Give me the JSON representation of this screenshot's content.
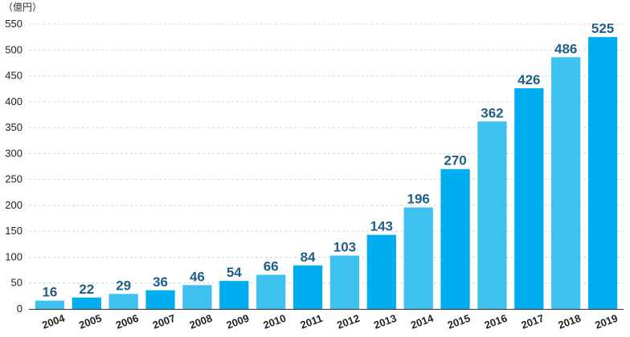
{
  "chart_data": {
    "type": "bar",
    "unit_label": "（億円）",
    "categories": [
      "2004",
      "2005",
      "2006",
      "2007",
      "2008",
      "2009",
      "2010",
      "2011",
      "2012",
      "2013",
      "2014",
      "2015",
      "2016",
      "2017",
      "2018",
      "2019"
    ],
    "values": [
      16,
      22,
      29,
      36,
      46,
      54,
      66,
      84,
      103,
      143,
      196,
      270,
      362,
      426,
      486,
      525
    ],
    "data_labels": [
      "16",
      "22",
      "29",
      "36",
      "46",
      "54",
      "66",
      "84",
      "103",
      "143",
      "196",
      "270",
      "362",
      "426",
      "486",
      "525"
    ],
    "yticks": [
      0,
      50,
      100,
      150,
      200,
      250,
      300,
      350,
      400,
      450,
      500,
      550
    ],
    "ylim": [
      0,
      550
    ],
    "grid": true,
    "colors": {
      "light_bar": "#3fc1f0",
      "dark_bar": "#00aeef",
      "data_label": "#1f5f86",
      "grid": "#cfd6dc"
    },
    "bar_color_pattern": [
      "light",
      "dark",
      "light",
      "dark",
      "light",
      "dark",
      "light",
      "dark",
      "light",
      "dark",
      "light",
      "dark",
      "light",
      "dark",
      "light",
      "dark"
    ]
  }
}
